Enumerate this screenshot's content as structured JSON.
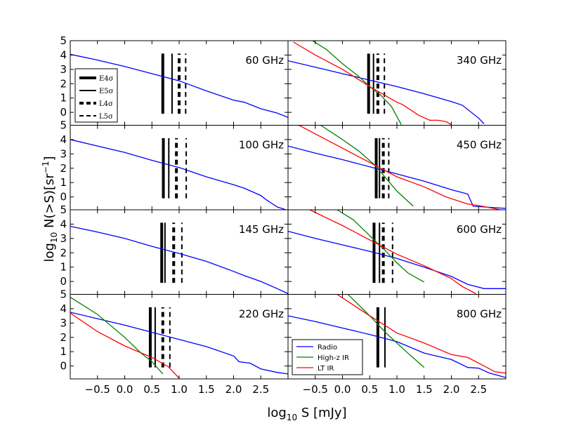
{
  "chart_data": {
    "type": "line",
    "xlabel": "log₁₀ S [mJy]",
    "ylabel": "log₁₀ N(>S)[sr⁻¹]",
    "xlabel_parts": {
      "log": "log",
      "sub": "10",
      "rest": " S [mJy]"
    },
    "ylabel_parts": {
      "log": "log",
      "sub": "10",
      "mid": " N(>S)[sr",
      "sup": "−1",
      "end": "]"
    },
    "xlim": [
      -1.0,
      3.0
    ],
    "ylim": [
      -0.9,
      5.0
    ],
    "x_ticks": [
      -0.5,
      0.0,
      0.5,
      1.0,
      1.5,
      2.0,
      2.5
    ],
    "x_tick_labels": [
      "−0.5",
      "0.0",
      "0.5",
      "1.0",
      "1.5",
      "2.0",
      "2.5"
    ],
    "y_ticks": [
      0,
      1,
      2,
      3,
      4,
      5
    ],
    "y_tick_labels": [
      "0",
      "1",
      "2",
      "3",
      "4",
      "5"
    ],
    "series_styles": [
      {
        "name": "Radio",
        "color": "#0000ff"
      },
      {
        "name": "High-z IR",
        "color": "#008000"
      },
      {
        "name": "LT IR",
        "color": "#ff0000"
      }
    ],
    "legend_lines": [
      {
        "key": "E4",
        "label": "E4σ",
        "style": "thick-solid"
      },
      {
        "key": "E5",
        "label": "E5σ",
        "style": "thin-solid"
      },
      {
        "key": "L4",
        "label": "L4σ",
        "style": "thick-dash"
      },
      {
        "key": "L5",
        "label": "L5σ",
        "style": "thin-dash"
      }
    ],
    "panels": [
      {
        "label": "60 GHz",
        "vlines": {
          "E4": 0.7,
          "E5": 0.87,
          "L4": 1.0,
          "L5": 1.12
        },
        "vrange": [
          -0.1,
          4.1
        ],
        "series": [
          {
            "name": "Radio",
            "x": [
              -1.0,
              -0.5,
              0.0,
              0.5,
              1.0,
              1.5,
              2.0,
              2.2,
              2.5,
              2.8,
              3.0
            ],
            "y": [
              4.05,
              3.65,
              3.2,
              2.7,
              2.2,
              1.5,
              0.85,
              0.7,
              0.25,
              -0.05,
              -0.35
            ]
          }
        ]
      },
      {
        "label": "340 GHz",
        "vlines": {
          "E4": 0.48,
          "E5": 0.57,
          "L4": 0.65,
          "L5": 0.77
        },
        "vrange": [
          -0.1,
          4.1
        ],
        "series": [
          {
            "name": "Radio",
            "x": [
              -1.0,
              -0.5,
              0.0,
              0.5,
              1.0,
              1.5,
              2.0,
              2.2,
              2.5,
              2.6
            ],
            "y": [
              3.6,
              3.15,
              2.7,
              2.25,
              1.8,
              1.3,
              0.75,
              0.5,
              -0.4,
              -0.8
            ]
          },
          {
            "name": "High-z IR",
            "x": [
              -0.55,
              -0.3,
              0.0,
              0.3,
              0.5,
              0.7,
              0.9,
              1.0,
              1.08
            ],
            "y": [
              5.0,
              4.4,
              3.4,
              2.5,
              1.8,
              1.2,
              0.4,
              -0.3,
              -0.85
            ]
          },
          {
            "name": "LT IR",
            "x": [
              -0.9,
              -0.5,
              0.0,
              0.5,
              1.0,
              1.1,
              1.4,
              1.6,
              1.75,
              1.9,
              2.0
            ],
            "y": [
              4.9,
              4.0,
              3.0,
              1.8,
              0.7,
              0.55,
              -0.2,
              -0.55,
              -0.55,
              -0.65,
              -0.85
            ]
          }
        ]
      },
      {
        "label": "100 GHz",
        "vlines": {
          "E4": 0.71,
          "E5": 0.81,
          "L4": 0.95,
          "L5": 1.13
        },
        "vrange": [
          -0.1,
          4.1
        ],
        "series": [
          {
            "name": "Radio",
            "x": [
              -1.0,
              -0.5,
              0.0,
              0.5,
              1.0,
              1.5,
              2.0,
              2.2,
              2.5,
              2.6,
              2.8,
              3.0
            ],
            "y": [
              4.0,
              3.55,
              3.1,
              2.55,
              2.05,
              1.4,
              0.85,
              0.6,
              0.1,
              -0.2,
              -0.7,
              -0.95
            ]
          }
        ]
      },
      {
        "label": "450 GHz",
        "vlines": {
          "E4": 0.62,
          "E5": 0.68,
          "L4": 0.75,
          "L5": 0.85
        },
        "vrange": [
          -0.1,
          4.1
        ],
        "series": [
          {
            "name": "Radio",
            "x": [
              -1.0,
              -0.5,
              0.0,
              0.5,
              1.0,
              1.5,
              2.0,
              2.3,
              2.4,
              3.0
            ],
            "y": [
              3.55,
              3.05,
              2.6,
              2.1,
              1.6,
              1.1,
              0.5,
              0.2,
              -0.65,
              -0.8
            ]
          },
          {
            "name": "High-z IR",
            "x": [
              -0.4,
              0.0,
              0.3,
              0.6,
              0.8,
              1.0,
              1.3
            ],
            "y": [
              5.0,
              4.0,
              3.2,
              2.2,
              1.3,
              0.4,
              -0.65
            ]
          },
          {
            "name": "LT IR",
            "x": [
              -0.8,
              -0.5,
              0.0,
              0.5,
              1.0,
              1.5,
              1.9,
              2.3,
              2.5,
              2.9
            ],
            "y": [
              5.0,
              4.4,
              3.4,
              2.4,
              1.4,
              0.7,
              0.0,
              -0.5,
              -0.6,
              -0.9
            ]
          }
        ]
      },
      {
        "label": "145 GHz",
        "vlines": {
          "E4": 0.68,
          "E5": 0.74,
          "L4": 0.9,
          "L5": 1.05
        },
        "vrange": [
          -0.1,
          4.1
        ],
        "series": [
          {
            "name": "Radio",
            "x": [
              -1.0,
              -0.5,
              0.0,
              0.5,
              1.0,
              1.5,
              2.0,
              2.2,
              2.5,
              2.8,
              3.0
            ],
            "y": [
              3.85,
              3.45,
              3.0,
              2.45,
              1.95,
              1.4,
              0.7,
              0.4,
              0.0,
              -0.5,
              -0.85
            ]
          }
        ]
      },
      {
        "label": "600 GHz",
        "vlines": {
          "E4": 0.58,
          "E5": 0.68,
          "L4": 0.75,
          "L5": 0.92
        },
        "vrange": [
          -0.1,
          4.1
        ],
        "series": [
          {
            "name": "Radio",
            "x": [
              -1.0,
              -0.5,
              0.0,
              0.5,
              1.0,
              1.5,
              2.0,
              2.3,
              2.6,
              2.8,
              3.0
            ],
            "y": [
              3.5,
              3.0,
              2.55,
              2.1,
              1.6,
              1.0,
              0.35,
              -0.2,
              -0.5,
              -0.5,
              -0.5
            ]
          },
          {
            "name": "High-z IR",
            "x": [
              -0.1,
              0.2,
              0.5,
              0.8,
              1.0,
              1.2,
              1.5
            ],
            "y": [
              5.0,
              4.3,
              3.2,
              2.1,
              1.3,
              0.6,
              -0.05
            ]
          },
          {
            "name": "LT IR",
            "x": [
              -0.6,
              0.0,
              0.5,
              1.0,
              1.5,
              2.0,
              2.2,
              2.45
            ],
            "y": [
              5.0,
              3.9,
              2.9,
              1.9,
              1.1,
              0.2,
              -0.35,
              -0.85
            ]
          }
        ]
      },
      {
        "label": "220 GHz",
        "vlines": {
          "E4": 0.47,
          "E5": 0.56,
          "L4": 0.7,
          "L5": 0.83
        },
        "vrange": [
          -0.1,
          4.1
        ],
        "series": [
          {
            "name": "Radio",
            "x": [
              -1.0,
              -0.5,
              0.0,
              0.5,
              1.0,
              1.5,
              2.0,
              2.1,
              2.3,
              2.5,
              2.8,
              3.0
            ],
            "y": [
              3.75,
              3.3,
              2.85,
              2.35,
              1.85,
              1.35,
              0.7,
              0.3,
              0.2,
              -0.2,
              -0.45,
              -0.55
            ]
          },
          {
            "name": "High-z IR",
            "x": [
              -1.0,
              -0.5,
              0.0,
              0.3,
              0.5,
              0.7
            ],
            "y": [
              4.8,
              3.6,
              2.0,
              0.9,
              0.3,
              -0.55
            ]
          },
          {
            "name": "LT IR",
            "x": [
              -1.0,
              -0.5,
              0.0,
              0.5,
              0.8,
              1.0
            ],
            "y": [
              3.7,
              2.4,
              1.4,
              0.6,
              -0.05,
              -0.85
            ]
          }
        ]
      },
      {
        "label": "800 GHz",
        "vlines": {
          "E4": 0.65,
          "E5": 0.78
        },
        "vrange": [
          -0.1,
          4.1
        ],
        "series": [
          {
            "name": "Radio",
            "x": [
              -1.0,
              -0.5,
              0.0,
              0.5,
              1.0,
              1.5,
              2.0,
              2.3,
              2.5,
              2.7,
              3.0
            ],
            "y": [
              3.5,
              3.1,
              2.65,
              2.2,
              1.7,
              0.9,
              0.45,
              -0.1,
              -0.15,
              -0.5,
              -0.8
            ]
          },
          {
            "name": "High-z IR",
            "x": [
              0.1,
              0.5,
              0.8,
              1.0,
              1.2,
              1.5
            ],
            "y": [
              5.0,
              3.5,
              2.3,
              1.6,
              0.9,
              -0.1
            ]
          },
          {
            "name": "LT IR",
            "x": [
              -0.1,
              0.5,
              1.0,
              1.5,
              2.0,
              2.3,
              2.6,
              2.8,
              3.0
            ],
            "y": [
              5.0,
              3.5,
              2.3,
              1.6,
              0.8,
              0.6,
              0.0,
              -0.4,
              -0.5
            ]
          }
        ]
      }
    ]
  }
}
